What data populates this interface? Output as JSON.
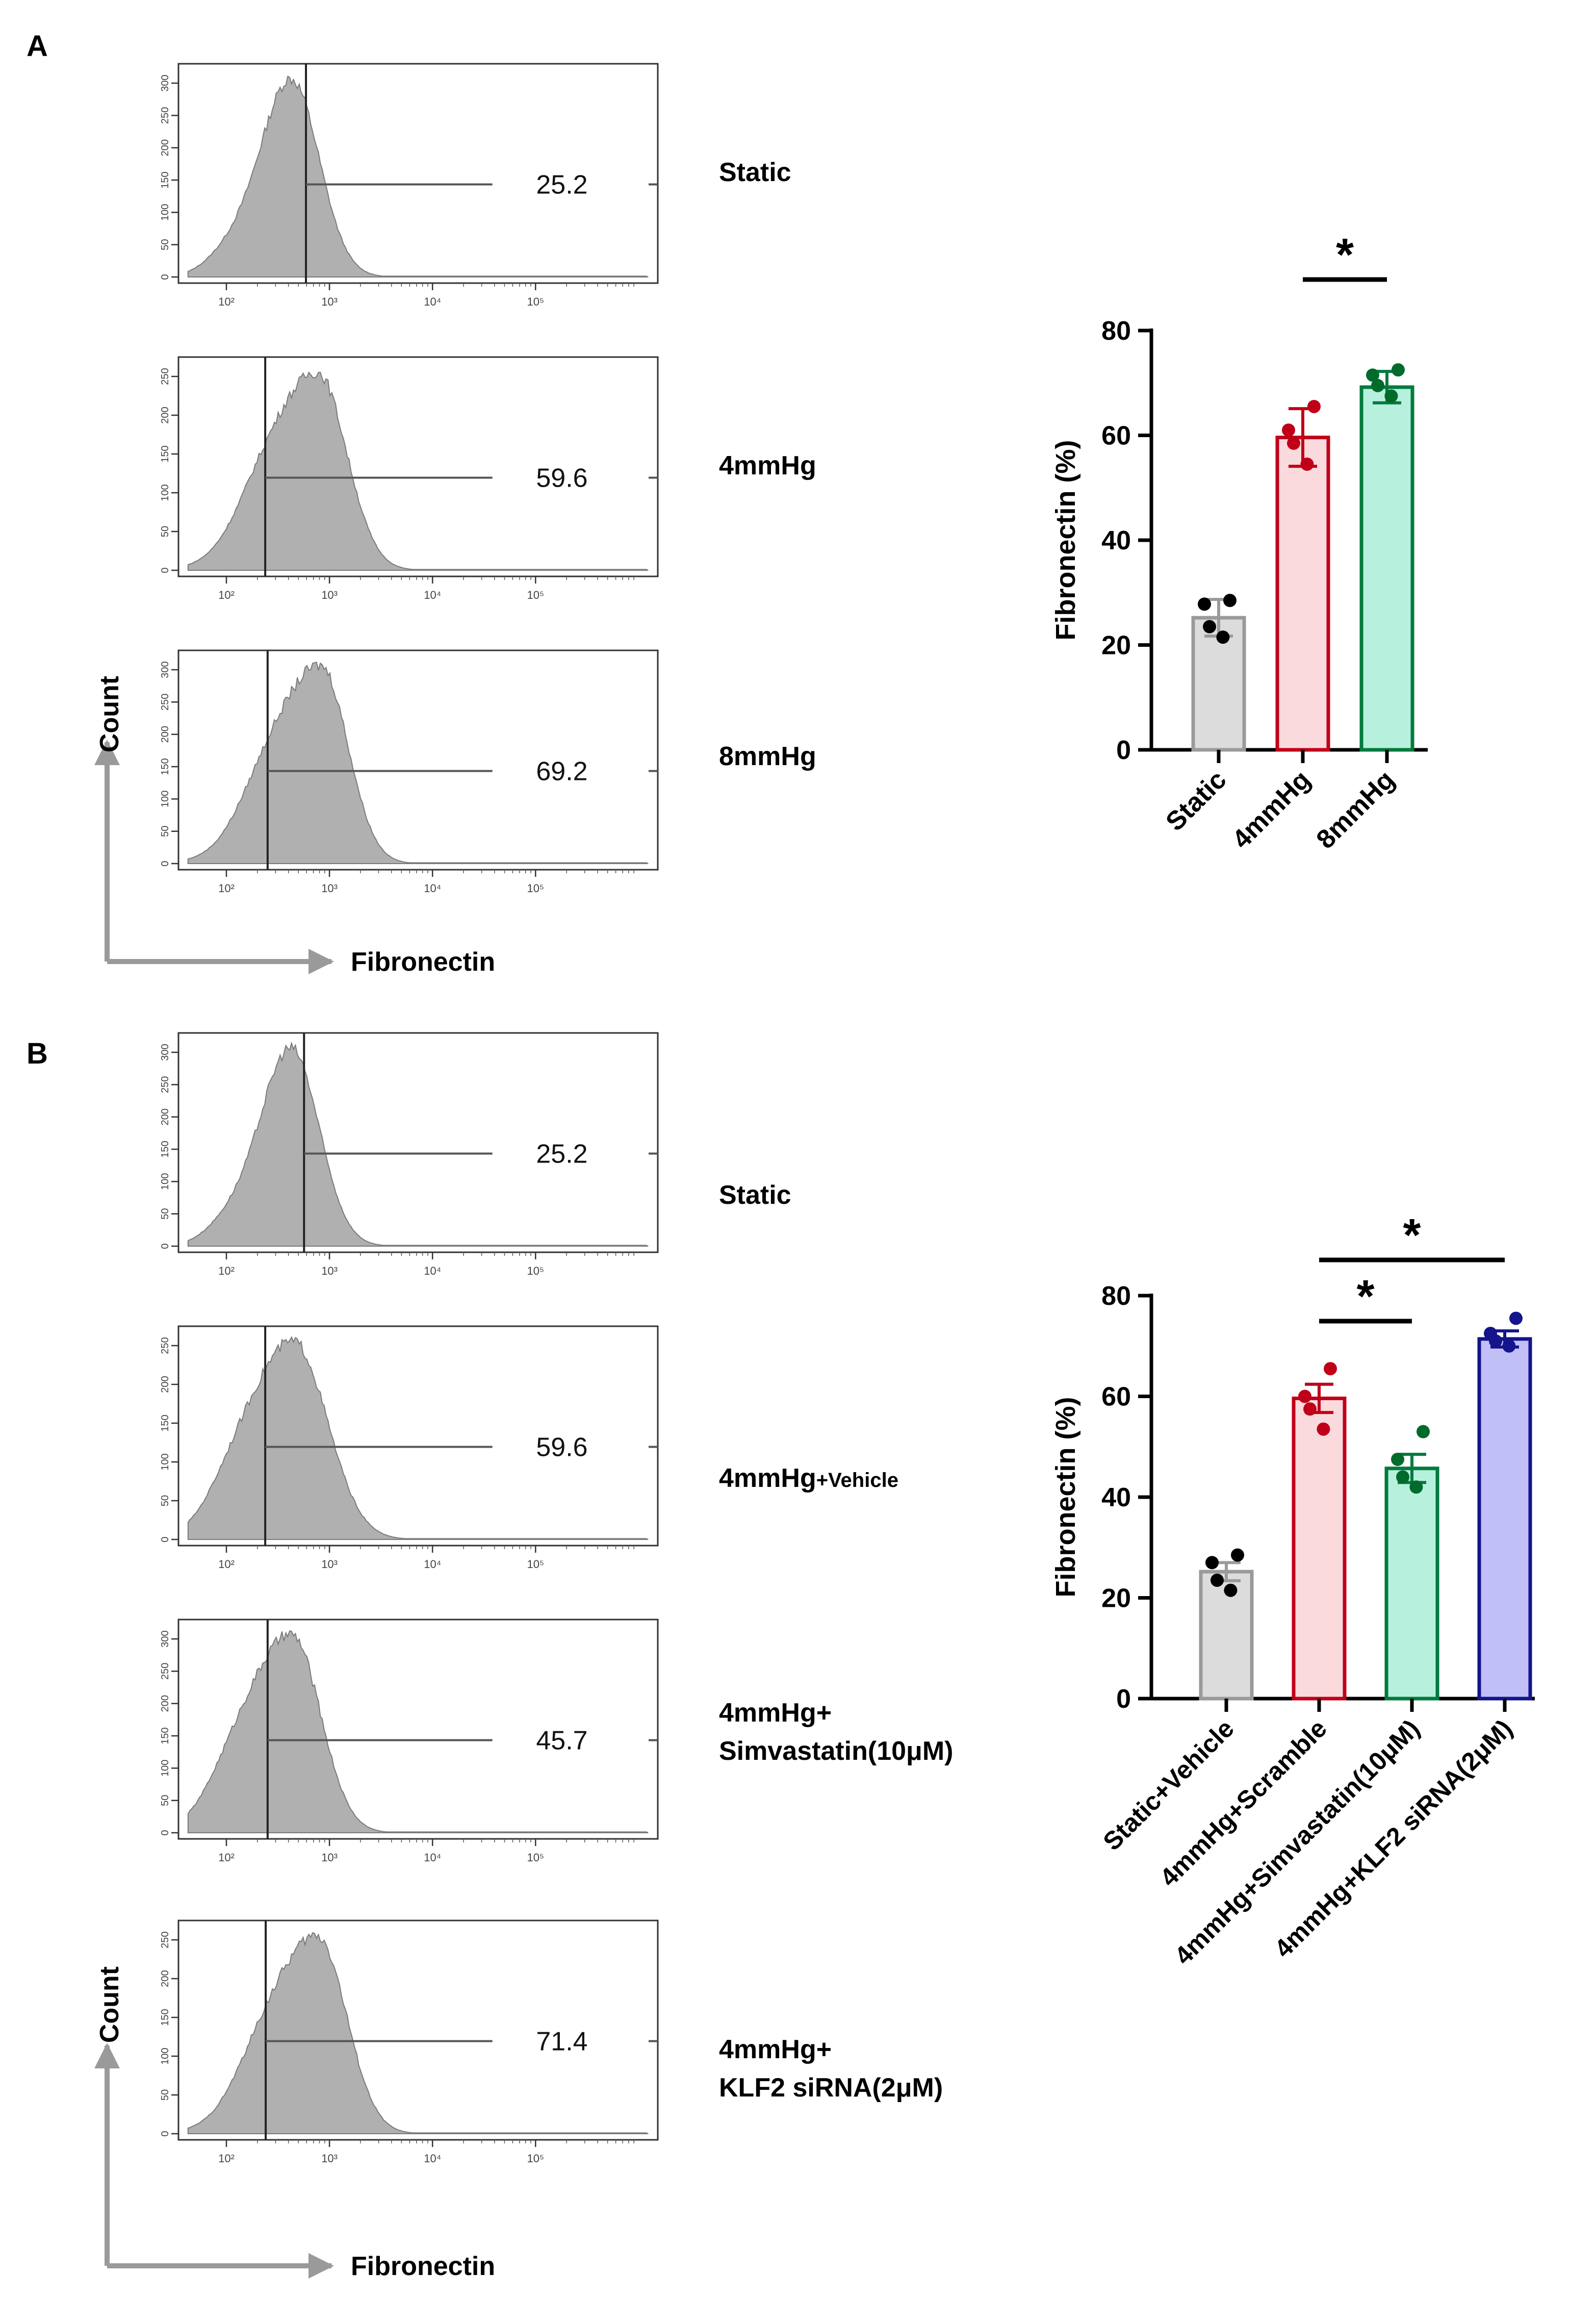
{
  "panels": [
    {
      "letter": "A",
      "histograms": [
        {
          "label": "Static",
          "value_text": "25.2",
          "yticks": [
            "0",
            "50",
            "100",
            "150",
            "200",
            "250",
            "300"
          ]
        },
        {
          "label": "4mmHg",
          "value_text": "59.6",
          "yticks": [
            "0",
            "50",
            "100",
            "150",
            "200",
            "250"
          ]
        },
        {
          "label": "8mmHg",
          "value_text": "69.2",
          "yticks": [
            "0",
            "50",
            "100",
            "150",
            "200",
            "250",
            "300"
          ]
        }
      ],
      "count_label": "Count",
      "fibronectin_label": "Fibronectin"
    },
    {
      "letter": "B",
      "histograms": [
        {
          "label": "Static",
          "value_text": "25.2",
          "yticks": [
            "0",
            "50",
            "100",
            "150",
            "200",
            "250",
            "300"
          ]
        },
        {
          "label": "4mmHg",
          "label_suffix": "+Vehicle",
          "value_text": "59.6",
          "yticks": [
            "0",
            "50",
            "100",
            "150",
            "200",
            "250"
          ]
        },
        {
          "label": "4mmHg+",
          "label_line2": "Simvastatin(10μM)",
          "value_text": "45.7",
          "yticks": [
            "0",
            "50",
            "100",
            "150",
            "200",
            "250",
            "300"
          ]
        },
        {
          "label": "4mmHg+",
          "label_line2": "KLF2 siRNA(2μM)",
          "value_text": "71.4",
          "yticks": [
            "0",
            "50",
            "100",
            "150",
            "200",
            "250"
          ]
        }
      ],
      "count_label": "Count",
      "fibronectin_label": "Fibronectin"
    }
  ],
  "xtick_labels": [
    "10²",
    "10³",
    "10⁴",
    "10⁵"
  ],
  "colors": {
    "hist_fill": "#b0b0b0",
    "hist_edge": "#7a7a7a",
    "arrow": "#9a9a9a"
  },
  "chart_data": [
    {
      "type": "bar",
      "panel": "A",
      "categories": [
        "Static",
        "4mmHg",
        "8mmHg"
      ],
      "values": [
        25.2,
        59.6,
        69.2
      ],
      "errors": [
        3.5,
        5.5,
        3.0
      ],
      "points": [
        [
          28.5,
          27.8,
          23.5,
          21.5
        ],
        [
          65.5,
          61.0,
          58.5,
          54.5
        ],
        [
          72.5,
          71.5,
          69.5,
          67.5
        ]
      ],
      "fill_colors": [
        "#dcdcdc",
        "#fadadd",
        "#b8f0de"
      ],
      "edge_colors": [
        "#9a9a9a",
        "#c00018",
        "#007a3d"
      ],
      "point_colors": [
        "#000000",
        "#c00018",
        "#006b2b"
      ],
      "ylabel": "Fibronectin (%)",
      "ylim": [
        0,
        80
      ],
      "yticks": [
        0,
        20,
        40,
        60,
        80
      ],
      "significance": [
        {
          "from": 1,
          "to": 2,
          "label": "*"
        }
      ]
    },
    {
      "type": "bar",
      "panel": "B",
      "categories": [
        "Static+Vehicle",
        "4mmHg+Scramble",
        "4mmHg+Simvastatin(10μM)",
        "4mmHg+KLF2 siRNA(2μM)"
      ],
      "values": [
        25.2,
        59.6,
        45.7,
        71.4
      ],
      "errors": [
        1.8,
        2.8,
        2.8,
        1.6
      ],
      "points": [
        [
          28.5,
          27.0,
          23.5,
          21.5
        ],
        [
          65.5,
          60.0,
          57.5,
          53.5
        ],
        [
          53.0,
          47.5,
          44.0,
          42.0
        ],
        [
          75.5,
          72.5,
          71.0,
          70.0
        ]
      ],
      "fill_colors": [
        "#dcdcdc",
        "#fadadd",
        "#b8f0de",
        "#c0c0f6"
      ],
      "edge_colors": [
        "#9a9a9a",
        "#c00018",
        "#007a3d",
        "#14148c"
      ],
      "point_colors": [
        "#000000",
        "#c00018",
        "#006b2b",
        "#14148c"
      ],
      "ylabel": "Fibronectin (%)",
      "ylim": [
        0,
        80
      ],
      "yticks": [
        0,
        20,
        40,
        60,
        80
      ],
      "significance": [
        {
          "from": 1,
          "to": 2,
          "label": "*"
        },
        {
          "from": 1,
          "to": 3,
          "label": "*"
        }
      ]
    }
  ]
}
